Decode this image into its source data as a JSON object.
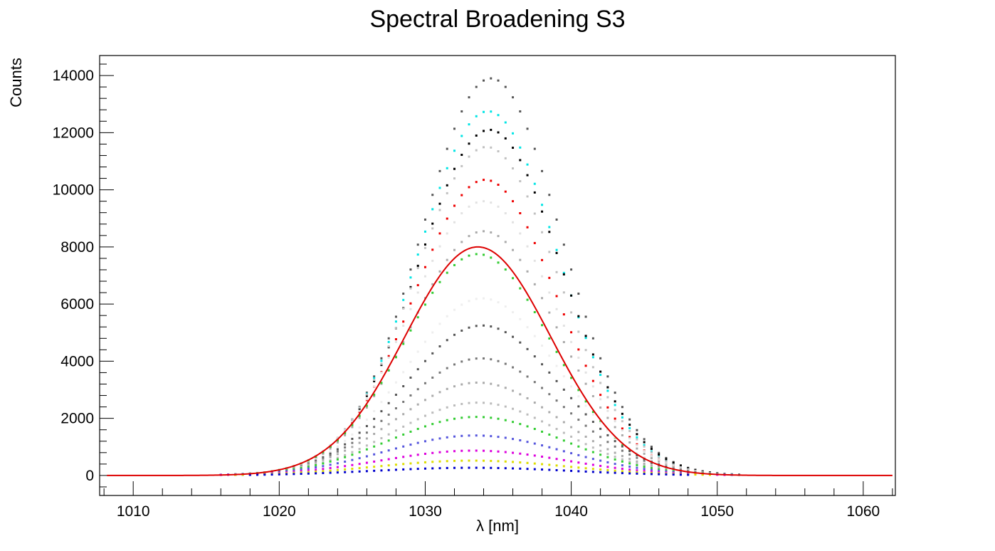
{
  "chart_data": {
    "type": "scatter",
    "title": "Spectral Broadening S3",
    "xlabel": "λ [nm]",
    "ylabel": "Counts",
    "xlim": [
      1007.7,
      1062.2
    ],
    "ylim": [
      -700,
      14700
    ],
    "x_ticks": [
      1010,
      1020,
      1030,
      1040,
      1050,
      1060
    ],
    "y_ticks": [
      0,
      2000,
      4000,
      6000,
      8000,
      10000,
      12000,
      14000
    ],
    "x_step": 0.5,
    "x_range": [
      1013.0,
      1052.0
    ],
    "grid": false,
    "legend": "none",
    "series": [
      {
        "color": "#555555",
        "peak": 13900,
        "center": 1034.5,
        "sigma": 4.8
      },
      {
        "color": "#00e5e5",
        "peak": 12750,
        "center": 1034.3,
        "sigma": 4.8
      },
      {
        "color": "#000000",
        "peak": 12100,
        "center": 1034.4,
        "sigma": 4.9
      },
      {
        "color": "#c0c0c0",
        "peak": 11500,
        "center": 1034.2,
        "sigma": 4.9
      },
      {
        "color": "#ee0000",
        "peak": 10350,
        "center": 1034.1,
        "sigma": 4.9
      },
      {
        "color": "#e2e2e2",
        "peak": 9600,
        "center": 1034.0,
        "sigma": 5.0
      },
      {
        "color": "#aaaaaa",
        "peak": 8550,
        "center": 1034.0,
        "sigma": 5.0
      },
      {
        "color": "#33cc33",
        "peak": 7750,
        "center": 1033.6,
        "sigma": 5.0
      },
      {
        "color": "#eeeeee",
        "peak": 6200,
        "center": 1033.9,
        "sigma": 5.2
      },
      {
        "color": "#555555",
        "peak": 5250,
        "center": 1033.9,
        "sigma": 5.3
      },
      {
        "color": "#777777",
        "peak": 4100,
        "center": 1033.8,
        "sigma": 5.5
      },
      {
        "color": "#aaaaaa",
        "peak": 3250,
        "center": 1033.6,
        "sigma": 5.6
      },
      {
        "color": "#bbbbbb",
        "peak": 2550,
        "center": 1033.6,
        "sigma": 5.7
      },
      {
        "color": "#33cc33",
        "peak": 2050,
        "center": 1033.5,
        "sigma": 5.9
      },
      {
        "color": "#5555dd",
        "peak": 1400,
        "center": 1033.4,
        "sigma": 6.1
      },
      {
        "color": "#dd00dd",
        "peak": 870,
        "center": 1033.3,
        "sigma": 6.3
      },
      {
        "color": "#dddd00",
        "peak": 520,
        "center": 1033.2,
        "sigma": 6.5
      },
      {
        "color": "#0000cc",
        "peak": 270,
        "center": 1033.2,
        "sigma": 6.7
      }
    ],
    "fit": {
      "color": "#dd0000",
      "peak": 8000,
      "center": 1033.6,
      "sigma": 5.0
    }
  }
}
